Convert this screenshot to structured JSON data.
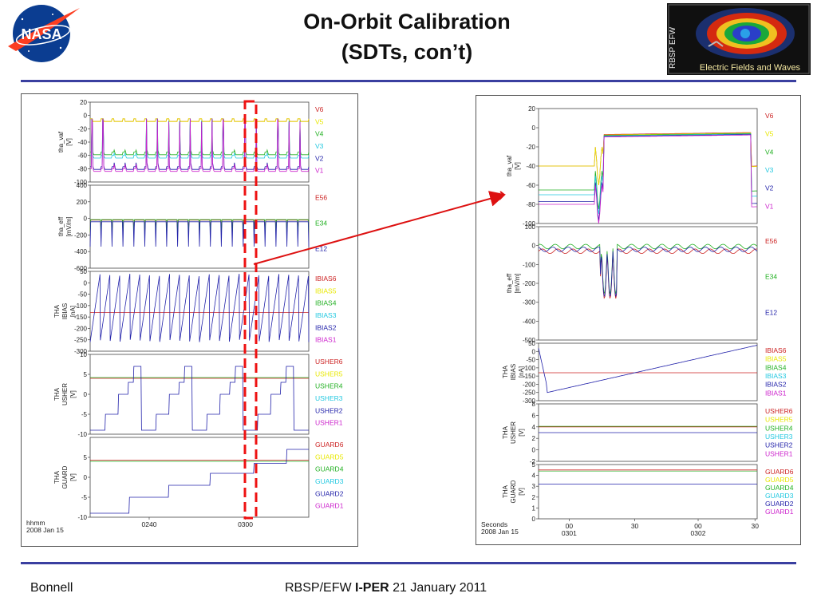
{
  "header": {
    "title_line1": "On-Orbit Calibration",
    "title_line2": "(SDTs, con’t)",
    "nasa_logo_text": "NASA",
    "efw_logo_side": "RBSP EFW",
    "efw_logo_caption": "Electric Fields and Waves"
  },
  "footer": {
    "left": "Bonnell",
    "center_prefix": "RBSP/EFW ",
    "center_bold": "I-PER",
    "center_suffix": " 21 January 2011"
  },
  "colors": {
    "rule": "#3a3fa0",
    "V6": "#cc2222",
    "V5": "#e8e800",
    "V4": "#22b022",
    "V3": "#22c8e0",
    "V2": "#2222aa",
    "V1": "#cc22cc",
    "arrow": "#dd1111"
  },
  "chart_data": [
    {
      "type": "line",
      "x_tick_labels": [
        "0240",
        "0300"
      ],
      "x_corner_label": [
        "hhmm",
        "2008 Jan 15"
      ],
      "highlight": "dashed red box around the interval near 0300",
      "panels": [
        {
          "ylabel": [
            "tha_vaf",
            "[V]"
          ],
          "yticks": [
            20,
            0,
            -20,
            -40,
            -60,
            -80,
            -100
          ],
          "ylim": [
            -100,
            20
          ],
          "legend": [
            "V6",
            "V5",
            "V4",
            "V3",
            "V2",
            "V1"
          ]
        },
        {
          "ylabel": [
            "tha_eff",
            "[mV/m]"
          ],
          "yticks": [
            400,
            200,
            0,
            -200,
            -400,
            -600
          ],
          "ylim": [
            -600,
            400
          ],
          "legend": [
            "E56",
            "E34",
            "E12"
          ]
        },
        {
          "ylabel": [
            "THA",
            "IBIAS",
            "[nA]"
          ],
          "yticks": [
            50,
            0,
            -50,
            -100,
            -150,
            -200,
            -250,
            -300
          ],
          "ylim": [
            -300,
            50
          ],
          "legend": [
            "IBIAS6",
            "IBIAS5",
            "IBIAS4",
            "IBIAS3",
            "IBIAS2",
            "IBIAS1"
          ]
        },
        {
          "ylabel": [
            "THA",
            "USHER",
            "[V]"
          ],
          "yticks": [
            10,
            5,
            0,
            -5,
            -10
          ],
          "ylim": [
            -10,
            10
          ],
          "legend": [
            "USHER6",
            "USHER5",
            "USHER4",
            "USHER3",
            "USHER2",
            "USHER1"
          ]
        },
        {
          "ylabel": [
            "THA",
            "GUARD",
            "[V]"
          ],
          "yticks": [
            5,
            0,
            -5,
            -10
          ],
          "ylim": [
            -10,
            10
          ],
          "legend": [
            "GUARD6",
            "GUARD5",
            "GUARD4",
            "GUARD3",
            "GUARD2",
            "GUARD1"
          ]
        }
      ]
    },
    {
      "type": "line",
      "x_tick_labels": [
        "00\n0301",
        "30",
        "00\n0302",
        "30"
      ],
      "x_corner_label": [
        "Seconds",
        "2008 Jan 15"
      ],
      "panels": [
        {
          "ylabel": [
            "tha_vaf",
            "[V]"
          ],
          "yticks": [
            20,
            0,
            -20,
            -40,
            -60,
            -80,
            -100
          ],
          "ylim": [
            -100,
            20
          ],
          "legend": [
            "V6",
            "V5",
            "V4",
            "V3",
            "V2",
            "V1"
          ]
        },
        {
          "ylabel": [
            "tha_eff",
            "[mV/m]"
          ],
          "yticks": [
            100,
            0,
            -100,
            -200,
            -300,
            -400,
            -500
          ],
          "ylim": [
            -500,
            100
          ],
          "legend": [
            "E56",
            "E34",
            "E12"
          ]
        },
        {
          "ylabel": [
            "THA",
            "IBIAS",
            "[nA]"
          ],
          "yticks": [
            50,
            0,
            -50,
            -100,
            -150,
            -200,
            -250,
            -300
          ],
          "ylim": [
            -300,
            50
          ],
          "legend": [
            "IBIAS6",
            "IBIAS5",
            "IBIAS4",
            "IBIAS3",
            "IBIAS2",
            "IBIAS1"
          ]
        },
        {
          "ylabel": [
            "THA",
            "USHER",
            "[V]"
          ],
          "yticks": [
            8,
            6,
            4,
            2,
            0,
            -2
          ],
          "ylim": [
            -2,
            8
          ],
          "legend": [
            "USHER6",
            "USHER5",
            "USHER4",
            "USHER3",
            "USHER2",
            "USHER1"
          ]
        },
        {
          "ylabel": [
            "THA",
            "GUARD",
            "[V]"
          ],
          "yticks": [
            5,
            4,
            3,
            2,
            1,
            0
          ],
          "ylim": [
            0,
            5
          ],
          "legend": [
            "GUARD6",
            "GUARD5",
            "GUARD4",
            "GUARD3",
            "GUARD2",
            "GUARD1"
          ]
        }
      ]
    }
  ]
}
